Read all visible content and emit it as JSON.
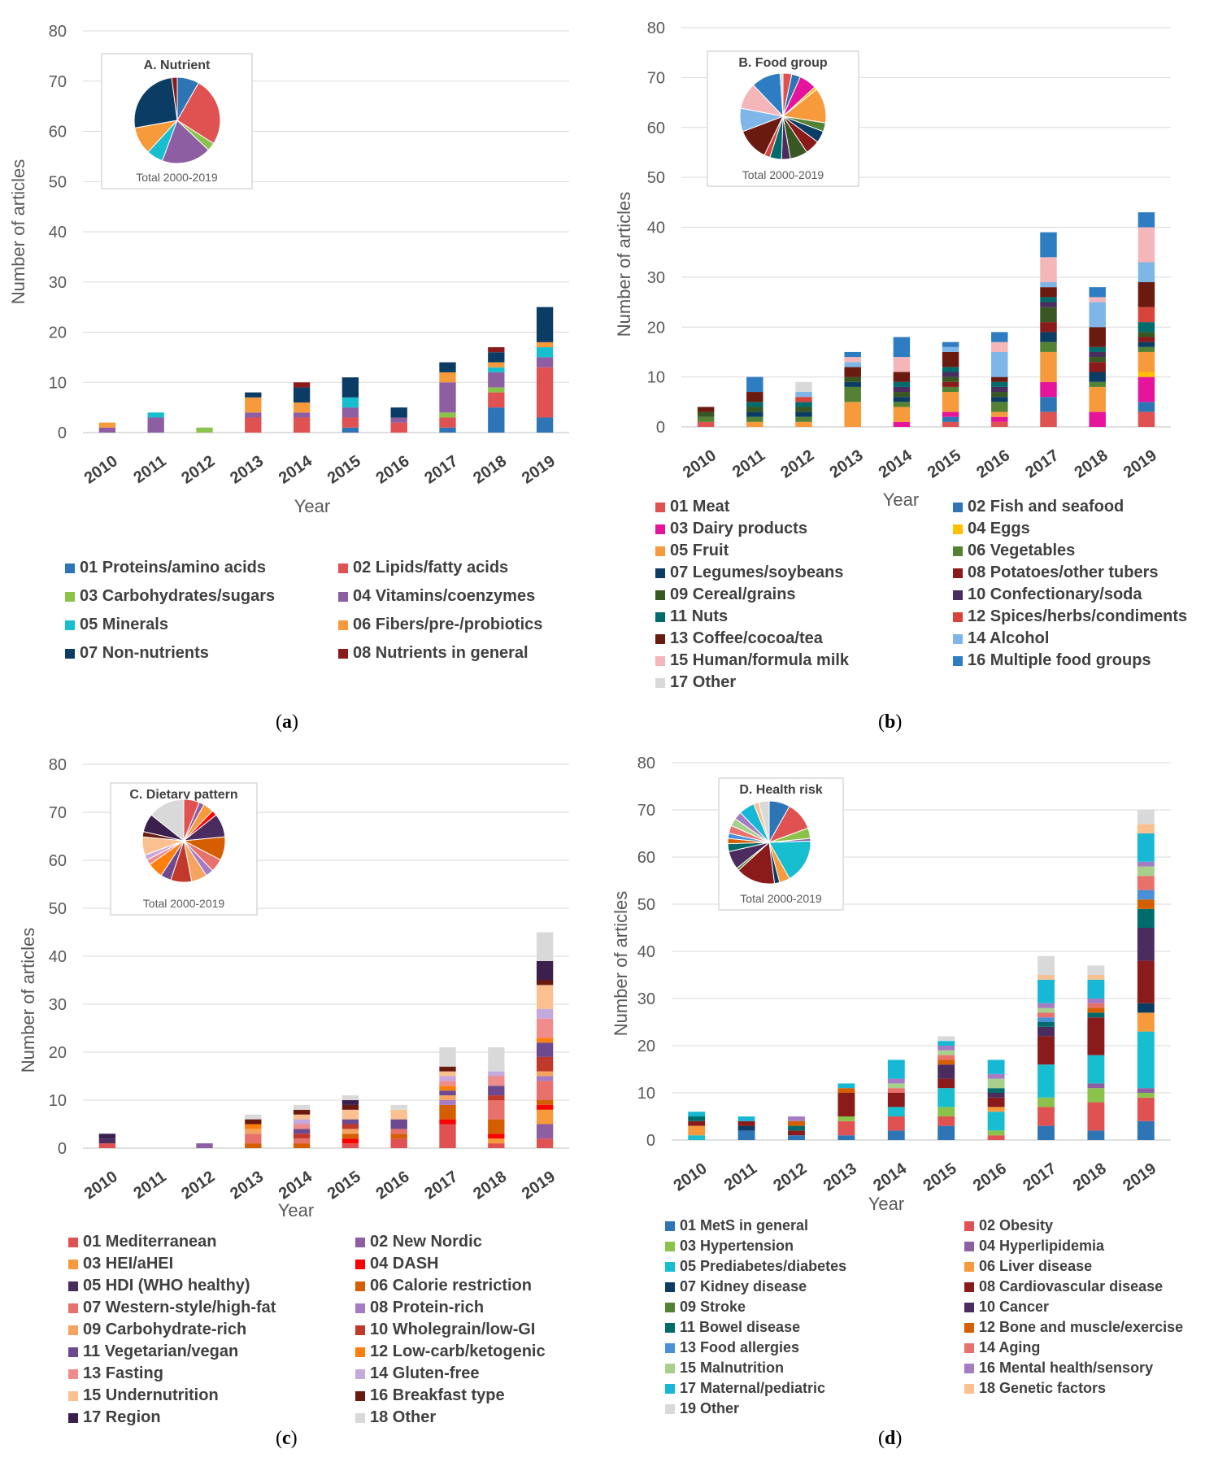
{
  "years": [
    "2010",
    "2011",
    "2012",
    "2013",
    "2014",
    "2015",
    "2016",
    "2017",
    "2018",
    "2019"
  ],
  "yticks": [
    0,
    10,
    20,
    30,
    40,
    50,
    60,
    70,
    80
  ],
  "xlabel": "Year",
  "ylabel": "Number of articles",
  "pie_total_label": "Total 2000-2019",
  "chart_data": [
    {
      "id": "a",
      "type": "bar",
      "stacked": true,
      "title": "A. Nutrient",
      "caption": "a",
      "ylim": [
        0,
        80
      ],
      "categories": [
        "2010",
        "2011",
        "2012",
        "2013",
        "2014",
        "2015",
        "2016",
        "2017",
        "2018",
        "2019"
      ],
      "series": [
        {
          "name": "01 Proteins/amino acids",
          "color": "#2e75b6",
          "values": [
            0,
            0,
            0,
            0,
            0,
            1,
            0,
            1,
            5,
            3
          ]
        },
        {
          "name": "02 Lipids/fatty acids",
          "color": "#e05252",
          "values": [
            0,
            0,
            0,
            3,
            3,
            2,
            2,
            2,
            3,
            10
          ]
        },
        {
          "name": "03 Carbohydrates/sugars",
          "color": "#8bc34a",
          "values": [
            0,
            0,
            1,
            0,
            0,
            0,
            0,
            1,
            1,
            0
          ]
        },
        {
          "name": "04 Vitamins/coenzymes",
          "color": "#8e5ea2",
          "values": [
            1,
            3,
            0,
            1,
            1,
            2,
            1,
            6,
            3,
            2
          ]
        },
        {
          "name": "05 Minerals",
          "color": "#17becf",
          "values": [
            0,
            1,
            0,
            0,
            0,
            2,
            0,
            0,
            1,
            2
          ]
        },
        {
          "name": "06 Fibers/pre-/probiotics",
          "color": "#f79a3b",
          "values": [
            1,
            0,
            0,
            3,
            2,
            0,
            0,
            2,
            1,
            1
          ]
        },
        {
          "name": "07 Non-nutrients",
          "color": "#0b3c64",
          "values": [
            0,
            0,
            0,
            1,
            3,
            4,
            2,
            2,
            2,
            7
          ]
        },
        {
          "name": "08 Nutrients in general",
          "color": "#8b1a1a",
          "values": [
            0,
            0,
            0,
            0,
            1,
            0,
            0,
            0,
            1,
            0
          ]
        }
      ],
      "pie": [
        8,
        25,
        3,
        18,
        6,
        10,
        25,
        2
      ]
    },
    {
      "id": "b",
      "type": "bar",
      "stacked": true,
      "title": "B. Food group",
      "caption": "b",
      "ylim": [
        0,
        80
      ],
      "categories": [
        "2010",
        "2011",
        "2012",
        "2013",
        "2014",
        "2015",
        "2016",
        "2017",
        "2018",
        "2019"
      ],
      "series": [
        {
          "name": "01 Meat",
          "color": "#e05252",
          "values": [
            1,
            0,
            0,
            0,
            0,
            1,
            1,
            3,
            0,
            3
          ]
        },
        {
          "name": "02 Fish and seafood",
          "color": "#2e75b6",
          "values": [
            0,
            0,
            0,
            0,
            0,
            1,
            0,
            3,
            0,
            2
          ]
        },
        {
          "name": "03 Dairy products",
          "color": "#e6149b",
          "values": [
            0,
            0,
            0,
            0,
            1,
            1,
            1,
            3,
            3,
            5
          ]
        },
        {
          "name": "04 Eggs",
          "color": "#ffc000",
          "values": [
            0,
            0,
            0,
            0,
            0,
            0,
            0,
            0,
            0,
            1
          ]
        },
        {
          "name": "05 Fruit",
          "color": "#f79a3b",
          "values": [
            0,
            1,
            1,
            5,
            3,
            4,
            1,
            6,
            5,
            4
          ]
        },
        {
          "name": "06 Vegetables",
          "color": "#548235",
          "values": [
            1,
            1,
            1,
            3,
            1,
            1,
            2,
            2,
            1,
            1
          ]
        },
        {
          "name": "07 Legumes/soybeans",
          "color": "#0b3c64",
          "values": [
            0,
            1,
            1,
            1,
            1,
            0,
            1,
            2,
            2,
            1
          ]
        },
        {
          "name": "08 Potatoes/other tubers",
          "color": "#8b1a1a",
          "values": [
            0,
            0,
            0,
            0,
            0,
            1,
            0,
            2,
            2,
            1
          ]
        },
        {
          "name": "09 Cereal/grains",
          "color": "#385723",
          "values": [
            1,
            1,
            1,
            1,
            1,
            1,
            1,
            3,
            1,
            1
          ]
        },
        {
          "name": "10 Confectionary/soda",
          "color": "#4b2c5e",
          "values": [
            0,
            0,
            0,
            0,
            1,
            1,
            1,
            1,
            1,
            0
          ]
        },
        {
          "name": "11 Nuts",
          "color": "#006b6b",
          "values": [
            0,
            1,
            1,
            0,
            1,
            1,
            1,
            1,
            1,
            2
          ]
        },
        {
          "name": "12 Spices/herbs/condiments",
          "color": "#d9443a",
          "values": [
            0,
            0,
            1,
            0,
            0,
            0,
            0,
            0,
            0,
            3
          ]
        },
        {
          "name": "13 Coffee/cocoa/tea",
          "color": "#6b1a10",
          "values": [
            1,
            2,
            0,
            2,
            2,
            3,
            1,
            2,
            4,
            5
          ]
        },
        {
          "name": "14 Alcohol",
          "color": "#7eb6e8",
          "values": [
            0,
            0,
            1,
            1,
            0,
            1,
            5,
            1,
            5,
            4
          ]
        },
        {
          "name": "15 Human/formula milk",
          "color": "#f4b6b9",
          "values": [
            0,
            0,
            0,
            1,
            3,
            0,
            2,
            5,
            1,
            7
          ]
        },
        {
          "name": "16 Multiple food groups",
          "color": "#2e7dc3",
          "values": [
            0,
            3,
            0,
            1,
            4,
            1,
            2,
            5,
            2,
            3
          ]
        },
        {
          "name": "17 Other",
          "color": "#d9d9d9",
          "values": [
            0,
            0,
            2,
            0,
            0,
            0,
            0,
            0,
            0,
            0
          ]
        }
      ],
      "pie": [
        3,
        3,
        6,
        1,
        12,
        3,
        4,
        5,
        6,
        3,
        4,
        2,
        11,
        8,
        9,
        10,
        1
      ]
    },
    {
      "id": "c",
      "type": "bar",
      "stacked": true,
      "title": "C. Dietary pattern",
      "caption": "c",
      "ylim": [
        0,
        80
      ],
      "categories": [
        "2010",
        "2011",
        "2012",
        "2013",
        "2014",
        "2015",
        "2016",
        "2017",
        "2018",
        "2019"
      ],
      "series": [
        {
          "name": "01 Mediterranean",
          "color": "#e05252",
          "values": [
            1,
            0,
            0,
            0,
            0,
            1,
            2,
            5,
            1,
            2
          ]
        },
        {
          "name": "02 New Nordic",
          "color": "#8e5ea2",
          "values": [
            0,
            0,
            1,
            0,
            0,
            0,
            0,
            0,
            0,
            3
          ]
        },
        {
          "name": "03 HEI/aHEI",
          "color": "#f79a3b",
          "values": [
            0,
            0,
            0,
            0,
            0,
            0,
            0,
            0,
            1,
            3
          ]
        },
        {
          "name": "04 DASH",
          "color": "#ff0000",
          "values": [
            0,
            0,
            0,
            0,
            0,
            1,
            0,
            1,
            1,
            1
          ]
        },
        {
          "name": "05 HDI (WHO healthy)",
          "color": "#4b2c5e",
          "values": [
            1,
            0,
            0,
            0,
            0,
            0,
            0,
            0,
            0,
            0
          ]
        },
        {
          "name": "06 Calorie restriction",
          "color": "#d55e00",
          "values": [
            0,
            0,
            0,
            1,
            1,
            1,
            1,
            3,
            3,
            1
          ]
        },
        {
          "name": "07 Western-style/high-fat",
          "color": "#e8716b",
          "values": [
            0,
            0,
            0,
            2,
            1,
            0,
            1,
            0,
            4,
            4
          ]
        },
        {
          "name": "08 Protein-rich",
          "color": "#a57cc4",
          "values": [
            0,
            0,
            0,
            0,
            0,
            0,
            0,
            1,
            0,
            1
          ]
        },
        {
          "name": "09 Carbohydrate-rich",
          "color": "#f4a460",
          "values": [
            0,
            0,
            0,
            1,
            0,
            1,
            0,
            1,
            0,
            1
          ]
        },
        {
          "name": "10 Wholegrain/low-GI",
          "color": "#c0392b",
          "values": [
            0,
            0,
            0,
            0,
            1,
            1,
            0,
            0,
            1,
            3
          ]
        },
        {
          "name": "11 Vegetarian/vegan",
          "color": "#6d4a8f",
          "values": [
            0,
            0,
            0,
            0,
            1,
            1,
            2,
            1,
            2,
            3
          ]
        },
        {
          "name": "12 Low-carb/ketogenic",
          "color": "#ff7f0e",
          "values": [
            0,
            0,
            0,
            1,
            0,
            0,
            0,
            1,
            0,
            1
          ]
        },
        {
          "name": "13 Fasting",
          "color": "#f08c8c",
          "values": [
            0,
            0,
            0,
            0,
            1,
            0,
            0,
            1,
            2,
            4
          ]
        },
        {
          "name": "14 Gluten-free",
          "color": "#c5a8dc",
          "values": [
            0,
            0,
            0,
            0,
            1,
            0,
            0,
            1,
            1,
            2
          ]
        },
        {
          "name": "15 Undernutrition",
          "color": "#fac08f",
          "values": [
            0,
            0,
            0,
            0,
            1,
            2,
            2,
            1,
            0,
            5
          ]
        },
        {
          "name": "16 Breakfast type",
          "color": "#6b1a10",
          "values": [
            0,
            0,
            0,
            1,
            1,
            1,
            0,
            1,
            0,
            1
          ]
        },
        {
          "name": "17 Region",
          "color": "#3b1f4d",
          "values": [
            1,
            0,
            0,
            0,
            0,
            1,
            0,
            0,
            0,
            4
          ]
        },
        {
          "name": "18 Other",
          "color": "#d9d9d9",
          "values": [
            0,
            0,
            0,
            1,
            1,
            1,
            1,
            4,
            5,
            6
          ]
        }
      ],
      "pie": [
        6,
        2,
        4,
        2,
        9,
        9,
        5,
        3,
        6,
        8,
        4,
        6,
        2,
        2,
        7,
        2,
        7,
        14
      ]
    },
    {
      "id": "d",
      "type": "bar",
      "stacked": true,
      "title": "D. Health risk",
      "caption": "d",
      "ylim": [
        0,
        80
      ],
      "categories": [
        "2010",
        "2011",
        "2012",
        "2013",
        "2014",
        "2015",
        "2016",
        "2017",
        "2018",
        "2019"
      ],
      "series": [
        {
          "name": "01 MetS in general",
          "color": "#2e75b6",
          "values": [
            0,
            2,
            1,
            1,
            2,
            3,
            0,
            3,
            2,
            4
          ]
        },
        {
          "name": "02 Obesity",
          "color": "#e05252",
          "values": [
            0,
            0,
            0,
            3,
            3,
            2,
            1,
            4,
            6,
            5
          ]
        },
        {
          "name": "03 Hypertension",
          "color": "#8bc34a",
          "values": [
            0,
            0,
            0,
            1,
            0,
            2,
            1,
            2,
            3,
            1
          ]
        },
        {
          "name": "04 Hyperlipidemia",
          "color": "#8e5ea2",
          "values": [
            0,
            0,
            0,
            0,
            0,
            0,
            0,
            0,
            1,
            1
          ]
        },
        {
          "name": "05 Prediabetes/diabetes",
          "color": "#17becf",
          "values": [
            1,
            0,
            0,
            0,
            2,
            4,
            4,
            7,
            6,
            12
          ]
        },
        {
          "name": "06 Liver disease",
          "color": "#f79a3b",
          "values": [
            2,
            0,
            0,
            0,
            0,
            0,
            1,
            0,
            0,
            4
          ]
        },
        {
          "name": "07 Kidney disease",
          "color": "#0b3c64",
          "values": [
            0,
            1,
            0,
            0,
            0,
            0,
            0,
            0,
            0,
            2
          ]
        },
        {
          "name": "08 Cardiovascular disease",
          "color": "#8b1a1a",
          "values": [
            1,
            1,
            1,
            5,
            3,
            2,
            2,
            6,
            8,
            9
          ]
        },
        {
          "name": "09 Stroke",
          "color": "#548235",
          "values": [
            0,
            0,
            0,
            0,
            0,
            0,
            0,
            0,
            0,
            0
          ]
        },
        {
          "name": "10 Cancer",
          "color": "#4b2c5e",
          "values": [
            0,
            0,
            0,
            0,
            0,
            3,
            1,
            2,
            0,
            7
          ]
        },
        {
          "name": "11 Bowel disease",
          "color": "#006b6b",
          "values": [
            1,
            0,
            1,
            0,
            0,
            0,
            1,
            1,
            1,
            4
          ]
        },
        {
          "name": "12 Bone and muscle/exercise",
          "color": "#d55e00",
          "values": [
            0,
            0,
            1,
            1,
            0,
            1,
            0,
            0,
            1,
            2
          ]
        },
        {
          "name": "13 Food allergies",
          "color": "#4a90d9",
          "values": [
            0,
            0,
            0,
            0,
            0,
            0,
            0,
            1,
            0,
            2
          ]
        },
        {
          "name": "14 Aging",
          "color": "#e8716b",
          "values": [
            0,
            0,
            0,
            0,
            1,
            1,
            0,
            1,
            1,
            3
          ]
        },
        {
          "name": "15 Malnutrition",
          "color": "#a8d08d",
          "values": [
            0,
            0,
            0,
            0,
            1,
            1,
            2,
            1,
            0,
            2
          ]
        },
        {
          "name": "16 Mental health/sensory",
          "color": "#a57cc4",
          "values": [
            0,
            0,
            1,
            0,
            1,
            1,
            1,
            1,
            1,
            1
          ]
        },
        {
          "name": "17 Maternal/pediatric",
          "color": "#17b8d6",
          "values": [
            1,
            1,
            0,
            1,
            4,
            1,
            3,
            5,
            4,
            6
          ]
        },
        {
          "name": "18 Genetic factors",
          "color": "#fac08f",
          "values": [
            0,
            0,
            0,
            0,
            0,
            0,
            0,
            1,
            1,
            2
          ]
        },
        {
          "name": "19 Other",
          "color": "#d9d9d9",
          "values": [
            0,
            0,
            0,
            0,
            0,
            1,
            0,
            4,
            2,
            3
          ]
        }
      ],
      "pie": [
        8,
        11,
        4,
        1,
        17,
        4,
        2,
        15,
        1,
        7,
        3,
        2,
        2,
        3,
        3,
        3,
        6,
        2,
        4
      ]
    }
  ]
}
